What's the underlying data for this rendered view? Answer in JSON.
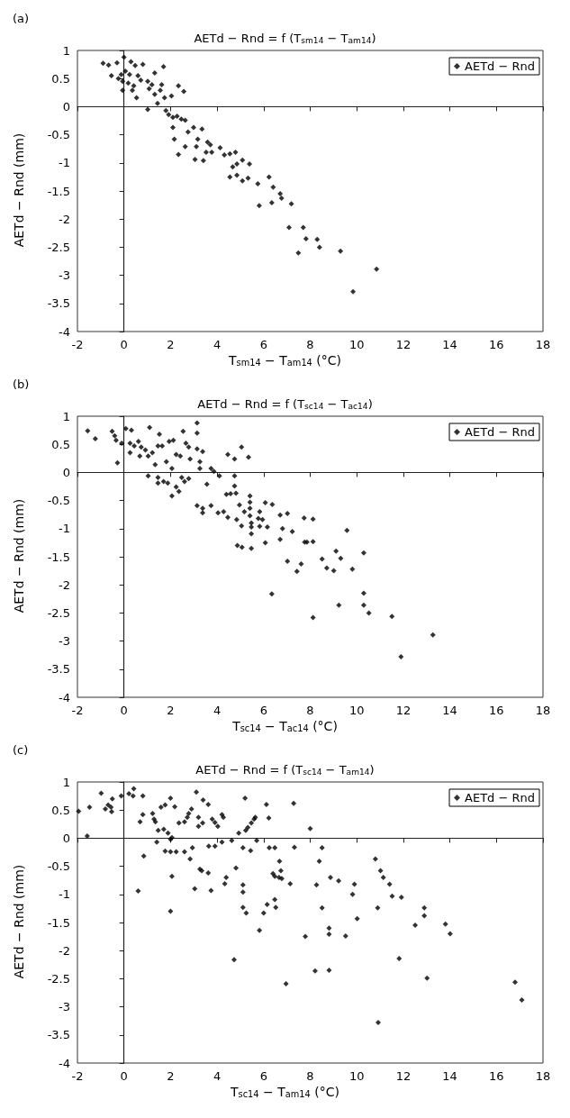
{
  "chart_data": [
    {
      "type": "scatter",
      "title": "AETd − Rnd = f (T$_{sm14}$ − T$_{am14}$)",
      "xlabel": "T$_{sm14}$ − T$_{am14}$ (°C)",
      "ylabel": "AETd − Rnd (mm)",
      "annotations": [
        "(a)"
      ],
      "xlim": [
        -2,
        18
      ],
      "ylim": [
        -4,
        1
      ],
      "xticks": [
        -2,
        0,
        2,
        4,
        6,
        8,
        10,
        12,
        14,
        16,
        18
      ],
      "yticks": [
        -4,
        -3.5,
        -3,
        -2.5,
        -2,
        -1.5,
        -1,
        -0.5,
        0,
        0.5,
        1
      ],
      "legend": "top right",
      "marker": "diamond",
      "series": [
        {
          "name": "AETd − Rnd",
          "color": "#000000",
          "x": [
            -0.9,
            -0.66,
            -0.3,
            0,
            0.3,
            0.48,
            0.81,
            1.7,
            -0.54,
            -0.12,
            0.06,
            0.24,
            0.6,
            1.32,
            -0.24,
            -0.06,
            0.18,
            0.42,
            0.72,
            1.02,
            1.2,
            1.62,
            2.34,
            2.57,
            2.04,
            0.36,
            0.54,
            -0.06,
            1.08,
            1.32,
            1.44,
            1.02,
            1.74,
            1.56,
            1.8,
            1.92,
            2.1,
            2.28,
            2.46,
            2.63,
            2.1,
            2.16,
            2.34,
            2.63,
            2.75,
            2.99,
            3.17,
            3.35,
            3.11,
            3.05,
            3.41,
            3.59,
            3.71,
            3.77,
            3.53,
            4.13,
            4.31,
            4.55,
            4.79,
            4.67,
            4.85,
            5.09,
            5.39,
            4.55,
            4.85,
            5.09,
            5.33,
            5.75,
            5.81,
            6.23,
            6.35,
            6.41,
            6.71,
            6.77,
            7.19,
            7.09,
            7.7,
            7.49,
            7.82,
            8.3,
            8.4,
            9.3,
            10.85,
            9.84
          ],
          "values": [
            0.77,
            0.74,
            0.78,
            0.88,
            0.8,
            0.73,
            0.75,
            0.71,
            0.55,
            0.57,
            0.63,
            0.57,
            0.55,
            0.6,
            0.5,
            0.45,
            0.42,
            0.37,
            0.47,
            0.45,
            0.39,
            0.39,
            0.37,
            0.27,
            0.19,
            0.29,
            0.16,
            0.29,
            0.32,
            0.22,
            0.06,
            -0.05,
            0.16,
            0.29,
            -0.07,
            -0.14,
            -0.19,
            -0.17,
            -0.22,
            -0.24,
            -0.37,
            -0.58,
            -0.85,
            -0.71,
            -0.45,
            -0.37,
            -0.58,
            -0.4,
            -0.71,
            -0.94,
            -0.96,
            -0.63,
            -0.68,
            -0.81,
            -0.81,
            -0.73,
            -0.86,
            -0.84,
            -0.81,
            -1.07,
            -1.02,
            -0.95,
            -1.02,
            -1.25,
            -1.22,
            -1.32,
            -1.27,
            -1.37,
            -1.76,
            -1.25,
            -1.71,
            -1.43,
            -1.55,
            -1.63,
            -1.73,
            -2.15,
            -2.15,
            -2.6,
            -2.35,
            -2.36,
            -2.5,
            -2.57,
            -2.89,
            -3.29
          ]
        }
      ]
    },
    {
      "type": "scatter",
      "title": "AETd − Rnd = f (T$_{sc14}$ − T$_{ac14}$)",
      "xlabel": "T$_{sc14}$ − T$_{ac14}$ (°C)",
      "ylabel": "AETd − Rnd (mm)",
      "annotations": [
        "(b)"
      ],
      "xlim": [
        -2,
        18
      ],
      "ylim": [
        -4,
        1
      ],
      "xticks": [
        -2,
        0,
        2,
        4,
        6,
        8,
        10,
        12,
        14,
        16,
        18
      ],
      "yticks": [
        -4,
        -3.5,
        -3,
        -2.5,
        -2,
        -1.5,
        -1,
        -0.5,
        0,
        0.5,
        1
      ],
      "legend": "top right",
      "marker": "diamond",
      "series": [
        {
          "name": "AETd − Rnd",
          "color": "#000000",
          "x": [
            -1.56,
            -1.23,
            -0.51,
            -0.4,
            -0.34,
            -0.1,
            -0.28,
            0.08,
            0.32,
            0.26,
            0.44,
            0.62,
            0.74,
            0.26,
            0.68,
            0.92,
            1.1,
            1.04,
            1.22,
            1.34,
            1.52,
            1.46,
            1.64,
            1.82,
            1.94,
            2.12,
            2.06,
            2.24,
            2.42,
            2.54,
            2.66,
            2.78,
            2.84,
            3.14,
            3.14,
            3.14,
            3.38,
            3.26,
            3.26,
            3.74,
            3.86,
            4.46,
            4.75,
            5.05,
            5.35,
            1.04,
            1.46,
            1.46,
            1.7,
            1.88,
            2.06,
            2.24,
            2.36,
            2.48,
            2.6,
            2.78,
            3.56,
            4.1,
            4.4,
            4.58,
            4.75,
            4.75,
            4.81,
            3.14,
            3.38,
            3.38,
            3.74,
            4.04,
            4.28,
            4.46,
            4.84,
            4.96,
            5.05,
            5.17,
            5.41,
            5.41,
            5.41,
            5.41,
            5.47,
            5.47,
            5.47,
            4.87,
            5.07,
            5.47,
            5.83,
            5.77,
            5.83,
            6.07,
            5.95,
            6.16,
            6.07,
            6.37,
            6.35,
            6.71,
            7.02,
            7.74,
            8.12,
            6.81,
            7.23,
            6.71,
            7.76,
            7.86,
            8.12,
            9.58,
            7.02,
            7.43,
            7.61,
            8.51,
            8.71,
            9.01,
            9.11,
            9.31,
            9.81,
            10.3,
            9.23,
            10.3,
            10.3,
            10.52,
            11.51,
            8.12,
            13.27,
            11.9
          ],
          "values": [
            0.74,
            0.6,
            0.73,
            0.65,
            0.57,
            0.52,
            0.17,
            0.78,
            0.75,
            0.52,
            0.47,
            0.55,
            0.45,
            0.35,
            0.29,
            0.4,
            0.8,
            0.29,
            0.35,
            0.14,
            0.68,
            0.47,
            0.47,
            0.19,
            0.55,
            0.57,
            0.07,
            0.32,
            0.29,
            0.73,
            0.52,
            0.45,
            0.24,
            0.88,
            0.7,
            0.42,
            0.37,
            0.19,
            0.07,
            0.07,
            0.02,
            0.32,
            0.24,
            0.45,
            0.27,
            -0.06,
            -0.09,
            -0.19,
            -0.16,
            -0.19,
            -0.42,
            -0.26,
            -0.34,
            -0.09,
            -0.16,
            -0.11,
            -0.21,
            -0.06,
            -0.39,
            -0.38,
            -0.06,
            -0.24,
            -0.37,
            -0.59,
            -0.64,
            -0.72,
            -0.59,
            -0.72,
            -0.7,
            -0.8,
            -0.84,
            -0.58,
            -0.95,
            -0.7,
            -0.42,
            -0.53,
            -0.64,
            -0.77,
            -0.9,
            -0.97,
            -1.09,
            -1.3,
            -1.33,
            -1.35,
            -0.7,
            -0.82,
            -0.96,
            -0.54,
            -0.84,
            -0.97,
            -1.25,
            -0.57,
            -2.16,
            -0.76,
            -0.73,
            -0.81,
            -0.83,
            -1.0,
            -1.05,
            -1.19,
            -1.24,
            -1.24,
            -1.23,
            -1.03,
            -1.58,
            -1.76,
            -1.63,
            -1.54,
            -1.7,
            -1.75,
            -1.4,
            -1.53,
            -1.72,
            -1.43,
            -2.36,
            -2.15,
            -2.36,
            -2.5,
            -2.56,
            -2.58,
            -2.89,
            -3.28
          ]
        }
      ]
    },
    {
      "type": "scatter",
      "title": "AETd − Rnd = f (T$_{sc14}$ − T$_{am14}$)",
      "xlabel": "T$_{sc14}$ − T$_{am14}$ (°C)",
      "ylabel": "AETd − Rnd (mm)",
      "annotations": [
        "(c)"
      ],
      "xlim": [
        -2,
        18
      ],
      "ylim": [
        -4,
        1
      ],
      "xticks": [
        -2,
        0,
        2,
        4,
        6,
        8,
        10,
        12,
        14,
        16,
        18
      ],
      "yticks": [
        -4,
        -3.5,
        -3,
        -2.5,
        -2,
        -1.5,
        -1,
        -0.5,
        0,
        0.5,
        1
      ],
      "legend": "top right",
      "marker": "diamond",
      "series": [
        {
          "name": "AETd − Rnd",
          "color": "#000000",
          "x": [
            -1.95,
            -1.58,
            -1.48,
            -0.98,
            -0.8,
            -0.68,
            -0.56,
            -0.5,
            -0.53,
            -0.12,
            0.21,
            0.42,
            0.39,
            0.81,
            0.81,
            0.69,
            0.85,
            0.61,
            1.23,
            1.29,
            1.35,
            1.47,
            1.41,
            1.59,
            1.77,
            2.0,
            1.71,
            1.89,
            2.0,
            2.18,
            2.06,
            1.77,
            2.0,
            2.24,
            2.06,
            2.0,
            2.36,
            2.6,
            2.72,
            2.78,
            2.9,
            2.6,
            2.84,
            2.94,
            3.04,
            3.11,
            3.2,
            3.2,
            3.38,
            3.4,
            3.62,
            3.26,
            3.34,
            3.62,
            3.64,
            3.74,
            3.79,
            3.91,
            4.03,
            4.21,
            4.27,
            4.21,
            3.91,
            4.63,
            4.33,
            4.39,
            4.73,
            4.81,
            4.93,
            5.11,
            5.11,
            5.11,
            5.11,
            5.25,
            5.2,
            5.23,
            5.32,
            5.44,
            5.47,
            5.59,
            5.64,
            5.7,
            5.82,
            6.0,
            6.15,
            6.12,
            6.22,
            6.24,
            6.48,
            6.4,
            6.48,
            6.48,
            6.52,
            6.68,
            6.74,
            6.78,
            6.66,
            6.96,
            7.14,
            7.29,
            7.32,
            7.79,
            8.0,
            8.21,
            8.27,
            8.51,
            8.39,
            8.51,
            8.81,
            8.81,
            8.81,
            8.87,
            9.22,
            9.52,
            9.9,
            9.82,
            10.02,
            10.8,
            11.02,
            11.14,
            11.41,
            10.9,
            11.52,
            11.92,
            11.82,
            10.92,
            12.51,
            12.9,
            12.9,
            13.02,
            13.81,
            14.01,
            16.8,
            17.09
          ],
          "values": [
            0.48,
            0.04,
            0.55,
            0.8,
            0.52,
            0.59,
            0.55,
            0.7,
            0.47,
            0.75,
            0.79,
            0.88,
            0.75,
            0.75,
            0.42,
            0.29,
            -0.32,
            -0.94,
            0.44,
            0.34,
            0.29,
            0.14,
            -0.07,
            0.55,
            0.59,
            0.71,
            0.16,
            0.09,
            -0.02,
            0.56,
            0.01,
            -0.23,
            -0.24,
            -0.24,
            -0.68,
            -1.3,
            0.27,
            0.29,
            0.37,
            0.44,
            0.52,
            -0.24,
            -0.37,
            -0.17,
            -0.9,
            0.82,
            0.21,
            0.37,
            0.27,
            0.68,
            0.6,
            -0.55,
            -0.58,
            -0.62,
            -0.14,
            -0.93,
            0.34,
            0.28,
            0.21,
            0.42,
            0.37,
            -0.07,
            -0.14,
            -0.04,
            -0.81,
            -0.7,
            -2.16,
            -0.53,
            0.09,
            -0.17,
            -0.83,
            -0.96,
            -1.23,
            -1.33,
            0.71,
            0.14,
            0.19,
            -0.22,
            0.27,
            0.34,
            0.37,
            -0.04,
            -1.64,
            -1.33,
            -1.18,
            0.6,
            0.36,
            -0.17,
            -0.17,
            -0.63,
            -0.68,
            -1.09,
            -1.23,
            -0.41,
            -0.58,
            -0.72,
            -0.7,
            -2.59,
            -0.81,
            0.62,
            -0.16,
            -1.75,
            0.17,
            -2.36,
            -0.83,
            -1.24,
            -0.41,
            -0.17,
            -1.6,
            -1.71,
            -2.35,
            -0.7,
            -0.76,
            -1.74,
            -0.82,
            -1.0,
            -1.43,
            -0.37,
            -0.58,
            -0.7,
            -0.82,
            -1.24,
            -1.03,
            -1.05,
            -2.14,
            -3.28,
            -1.55,
            -1.24,
            -1.38,
            -2.49,
            -1.53,
            -1.7,
            -2.56,
            -2.88
          ]
        }
      ]
    }
  ]
}
